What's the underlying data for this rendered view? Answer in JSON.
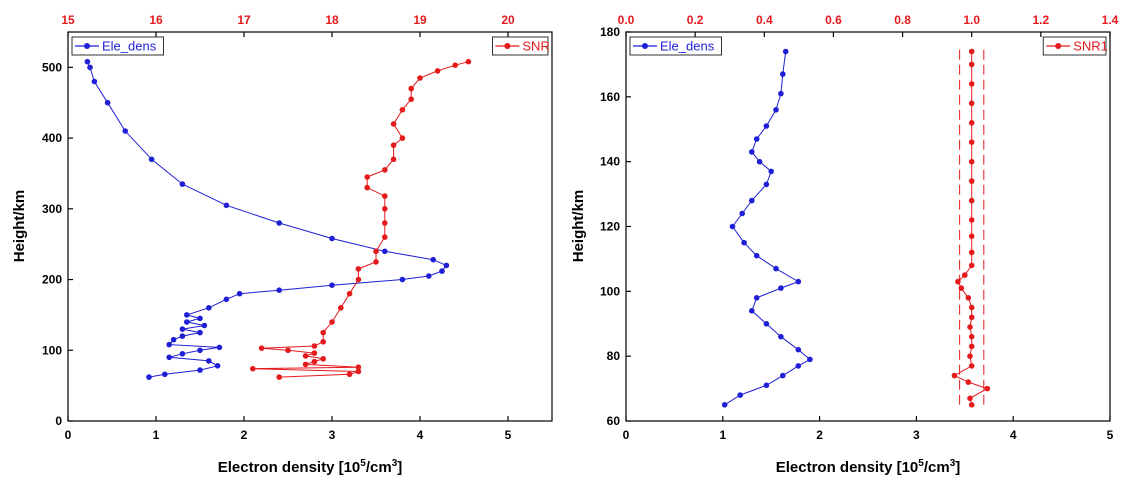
{
  "chart_data": [
    {
      "type": "scatter",
      "xlabel_main": "Electron density [10",
      "xlabel_sup": "5",
      "xlabel_tail": "/cm",
      "xlabel_sup2": "3",
      "xlabel_end": "]",
      "ylabel": "Height/km",
      "bottom_axis": {
        "range": [
          0,
          5.5
        ],
        "ticks": [
          "0",
          "1",
          "2",
          "3",
          "4",
          "5"
        ]
      },
      "top_axis": {
        "range": [
          15,
          20.5
        ],
        "ticks": [
          "15",
          "16",
          "17",
          "18",
          "19",
          "20"
        ]
      },
      "y_axis": {
        "range": [
          0,
          550
        ],
        "ticks": [
          "0",
          "100",
          "200",
          "300",
          "400",
          "500"
        ]
      },
      "legend": [
        {
          "label": "Ele_dens",
          "color": "#1f1fd6",
          "position": "top-left"
        },
        {
          "label": "SNR",
          "color": "#e41a1c",
          "position": "top-right"
        }
      ],
      "series": [
        {
          "name": "Ele_dens",
          "color": "#1f1fd6",
          "x_axis": "bottom",
          "points": [
            [
              0.92,
              62
            ],
            [
              1.1,
              66
            ],
            [
              1.5,
              72
            ],
            [
              1.7,
              78
            ],
            [
              1.6,
              85
            ],
            [
              1.15,
              90
            ],
            [
              1.3,
              95
            ],
            [
              1.5,
              100
            ],
            [
              1.72,
              104
            ],
            [
              1.15,
              108
            ],
            [
              1.2,
              115
            ],
            [
              1.3,
              120
            ],
            [
              1.5,
              125
            ],
            [
              1.3,
              130
            ],
            [
              1.55,
              135
            ],
            [
              1.35,
              140
            ],
            [
              1.5,
              145
            ],
            [
              1.35,
              150
            ],
            [
              1.6,
              160
            ],
            [
              1.8,
              172
            ],
            [
              1.95,
              180
            ],
            [
              2.4,
              185
            ],
            [
              3.0,
              192
            ],
            [
              3.8,
              200
            ],
            [
              4.1,
              205
            ],
            [
              4.25,
              212
            ],
            [
              4.3,
              220
            ],
            [
              4.15,
              228
            ],
            [
              3.6,
              240
            ],
            [
              3.0,
              258
            ],
            [
              2.4,
              280
            ],
            [
              1.8,
              305
            ],
            [
              1.3,
              335
            ],
            [
              0.95,
              370
            ],
            [
              0.65,
              410
            ],
            [
              0.45,
              450
            ],
            [
              0.3,
              480
            ],
            [
              0.25,
              500
            ],
            [
              0.22,
              508
            ]
          ]
        },
        {
          "name": "SNR",
          "color": "#e41a1c",
          "x_axis": "top",
          "points": [
            [
              17.4,
              62
            ],
            [
              18.2,
              66
            ],
            [
              18.3,
              70
            ],
            [
              17.1,
              74
            ],
            [
              18.3,
              76
            ],
            [
              17.7,
              80
            ],
            [
              17.8,
              84
            ],
            [
              17.9,
              88
            ],
            [
              17.7,
              92
            ],
            [
              17.8,
              96
            ],
            [
              17.5,
              100
            ],
            [
              17.2,
              103
            ],
            [
              17.8,
              106
            ],
            [
              17.9,
              112
            ],
            [
              17.9,
              125
            ],
            [
              18.0,
              140
            ],
            [
              18.1,
              160
            ],
            [
              18.2,
              180
            ],
            [
              18.3,
              200
            ],
            [
              18.3,
              215
            ],
            [
              18.5,
              225
            ],
            [
              18.5,
              240
            ],
            [
              18.6,
              260
            ],
            [
              18.6,
              280
            ],
            [
              18.6,
              300
            ],
            [
              18.6,
              318
            ],
            [
              18.4,
              330
            ],
            [
              18.4,
              345
            ],
            [
              18.6,
              355
            ],
            [
              18.7,
              370
            ],
            [
              18.7,
              390
            ],
            [
              18.8,
              400
            ],
            [
              18.7,
              420
            ],
            [
              18.8,
              440
            ],
            [
              18.9,
              455
            ],
            [
              18.9,
              470
            ],
            [
              19.0,
              485
            ],
            [
              19.2,
              495
            ],
            [
              19.4,
              503
            ],
            [
              19.55,
              508
            ]
          ]
        }
      ]
    },
    {
      "type": "scatter",
      "xlabel_main": "Electron density [10",
      "xlabel_sup": "5",
      "xlabel_tail": "/cm",
      "xlabel_sup2": "3",
      "xlabel_end": "]",
      "ylabel": "Height/km",
      "bottom_axis": {
        "range": [
          0,
          5
        ],
        "ticks": [
          "0",
          "1",
          "2",
          "3",
          "4",
          "5"
        ]
      },
      "top_axis": {
        "range": [
          0,
          1.4
        ],
        "ticks": [
          "0.0",
          "0.2",
          "0.4",
          "0.6",
          "0.8",
          "1.0",
          "1.2",
          "1.4"
        ]
      },
      "y_axis": {
        "range": [
          60,
          180
        ],
        "ticks": [
          "60",
          "80",
          "100",
          "120",
          "140",
          "160",
          "180"
        ]
      },
      "legend": [
        {
          "label": "Ele_dens",
          "color": "#1f1fd6",
          "position": "top-left"
        },
        {
          "label": "SNR1",
          "color": "#e41a1c",
          "position": "top-right"
        }
      ],
      "reference_lines": {
        "top_axis_values": [
          0.965,
          1.035
        ],
        "style": "dashed",
        "color": "#e41a1c"
      },
      "series": [
        {
          "name": "Ele_dens",
          "color": "#1f1fd6",
          "x_axis": "bottom",
          "points": [
            [
              1.02,
              65
            ],
            [
              1.18,
              68
            ],
            [
              1.45,
              71
            ],
            [
              1.62,
              74
            ],
            [
              1.78,
              77
            ],
            [
              1.9,
              79
            ],
            [
              1.78,
              82
            ],
            [
              1.6,
              86
            ],
            [
              1.45,
              90
            ],
            [
              1.3,
              94
            ],
            [
              1.35,
              98
            ],
            [
              1.6,
              101
            ],
            [
              1.78,
              103
            ],
            [
              1.55,
              107
            ],
            [
              1.35,
              111
            ],
            [
              1.22,
              115
            ],
            [
              1.1,
              120
            ],
            [
              1.2,
              124
            ],
            [
              1.3,
              128
            ],
            [
              1.45,
              133
            ],
            [
              1.5,
              137
            ],
            [
              1.38,
              140
            ],
            [
              1.3,
              143
            ],
            [
              1.35,
              147
            ],
            [
              1.45,
              151
            ],
            [
              1.55,
              156
            ],
            [
              1.6,
              161
            ],
            [
              1.62,
              167
            ],
            [
              1.65,
              174
            ]
          ]
        },
        {
          "name": "SNR1",
          "color": "#e41a1c",
          "x_axis": "top",
          "points": [
            [
              1.0,
              65
            ],
            [
              0.995,
              67
            ],
            [
              1.045,
              70
            ],
            [
              0.99,
              72
            ],
            [
              0.95,
              74
            ],
            [
              1.0,
              77
            ],
            [
              0.995,
              80
            ],
            [
              1.0,
              83
            ],
            [
              1.0,
              86
            ],
            [
              0.995,
              89
            ],
            [
              1.0,
              92
            ],
            [
              1.0,
              95
            ],
            [
              0.99,
              98
            ],
            [
              0.97,
              101
            ],
            [
              0.96,
              103
            ],
            [
              0.98,
              105
            ],
            [
              1.0,
              108
            ],
            [
              1.0,
              112
            ],
            [
              1.0,
              117
            ],
            [
              1.0,
              122
            ],
            [
              1.0,
              128
            ],
            [
              1.0,
              134
            ],
            [
              1.0,
              140
            ],
            [
              1.0,
              146
            ],
            [
              1.0,
              152
            ],
            [
              1.0,
              158
            ],
            [
              1.0,
              164
            ],
            [
              1.0,
              170
            ],
            [
              1.0,
              174
            ]
          ]
        }
      ]
    }
  ]
}
